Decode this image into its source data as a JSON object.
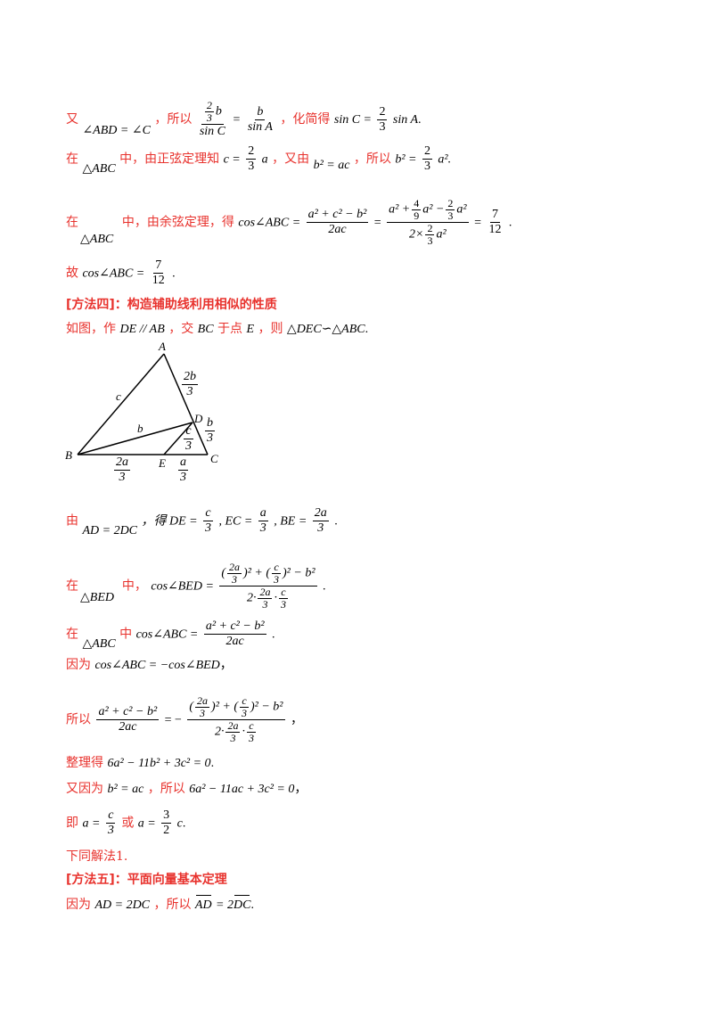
{
  "l1": {
    "you": "又",
    "angle": "∠ABD = ∠C",
    "suoyi": "，所以",
    "fnum_num": "2",
    "fnum_den": "3",
    "b": "b",
    "sinC": "sin C",
    "eq": "=",
    "b2": "b",
    "sinA": "sin A",
    "huajian": "，化简得",
    "result": "sin C =",
    "r_num": "2",
    "r_den": "3",
    "r_tail": "sin A",
    "end": "."
  },
  "l2": {
    "zai": "在",
    "tri": "△ABC",
    "zhong": "中，由正弦定理知",
    "c_eq": "c =",
    "n": "2",
    "d": "3",
    "a": "a",
    "youyou": "，又由",
    "b2ac": "b² = ac",
    "suoyi": "，所以",
    "b2": "b² =",
    "n2": "2",
    "d2": "3",
    "a2": "a².",
    "tail": ""
  },
  "l3": {
    "zai": "在",
    "zhong": "中，由余弦定理，得",
    "cos": "cos∠ABC =",
    "num1": "a² + c² − b²",
    "den1": "2ac",
    "eq": "=",
    "num2_a": "a² +",
    "num2_f1n": "4",
    "num2_f1d": "9",
    "num2_b": "a² −",
    "num2_f2n": "2",
    "num2_f2d": "3",
    "num2_c": "a²",
    "den2_a": "2×",
    "den2_fn": "2",
    "den2_fd": "3",
    "den2_b": "a²",
    "eq2": "=",
    "rn": "7",
    "rd": "12",
    "end": ".",
    "tri": "△ABC"
  },
  "l4": {
    "gu": "故",
    "cos": "cos∠ABC =",
    "n": "7",
    "d": "12",
    "end": "."
  },
  "method4": "[方法四]：构造辅助线利用相似的性质",
  "l5": {
    "text1": "如图，作",
    "de": "DE // AB",
    "text2": "，交",
    "bc": "BC",
    "text3": "于点",
    "e": "E",
    "text4": "，则",
    "sim": "△DEC∽△ABC",
    "end": "."
  },
  "figure": {
    "A": "A",
    "B": "B",
    "C": "C",
    "D": "D",
    "E": "E",
    "c": "c",
    "b": "b",
    "ab_n": "2b",
    "ab_d": "3",
    "dc_n": "b",
    "dc_d": "3",
    "de_n": "c",
    "de_d": "3",
    "be_n": "2a",
    "be_d": "3",
    "ec_n": "a",
    "ec_d": "3"
  },
  "l6": {
    "you": "由",
    "cond": "AD = 2DC",
    "de": "，得 DE =",
    "n1": "c",
    "d1": "3",
    "ec": ", EC =",
    "n2": "a",
    "d2": "3",
    "be": ", BE =",
    "n3": "2a",
    "d3": "3",
    "end": "."
  },
  "l7": {
    "zai": "在",
    "zhong": "中，",
    "cos": "cos∠BED =",
    "num_a": "(",
    "f1n": "2a",
    "f1d": "3",
    "num_b": ")² + (",
    "f2n": "c",
    "f2d": "3",
    "num_c": ")² − b²",
    "den_a": "2·",
    "f3n": "2a",
    "f3d": "3",
    "den_b": "·",
    "f4n": "c",
    "f4d": "3",
    "end": ".",
    "tri": "△BED"
  },
  "l8": {
    "zai": "在",
    "tri": "△ABC",
    "zhong": "中",
    "cos": "cos∠ABC =",
    "num": "a² + c² − b²",
    "den": "2ac",
    "end": "."
  },
  "l9": {
    "yinwei": "因为",
    "eq": "cos∠ABC = −cos∠BED",
    "end": "，"
  },
  "l10": {
    "suoyi": "所以",
    "num": "a² + c² − b²",
    "den": "2ac",
    "eq": "= −",
    "num_a": "(",
    "f1n": "2a",
    "f1d": "3",
    "num_b": ")² + (",
    "f2n": "c",
    "f2d": "3",
    "num_c": ")² − b²",
    "den_a": "2·",
    "f3n": "2a",
    "f3d": "3",
    "den_b": "·",
    "f4n": "c",
    "f4d": "3",
    "end": "，"
  },
  "l11": {
    "zhengli": "整理得",
    "eq": "6a² − 11b² + 3c² = 0",
    "end": "."
  },
  "l12": {
    "you": "又因为",
    "b2": "b² = ac",
    "suoyi": "，所以",
    "eq": "6a² − 11ac + 3c² = 0",
    "end": "，"
  },
  "l13": {
    "ji": "即",
    "a": "a =",
    "n1": "c",
    "d1": "3",
    "huo": "或",
    "a2": "a =",
    "n2": "3",
    "d2": "2",
    "c": "c",
    "end": "."
  },
  "l14": "下同解法1.",
  "method5": "[方法五]：平面向量基本定理",
  "l15": {
    "yinwei": "因为",
    "cond": "AD = 2DC",
    "suoyi": "，所以",
    "v1": "AD",
    "eq": "= 2",
    "v2": "DC",
    "end": "."
  }
}
